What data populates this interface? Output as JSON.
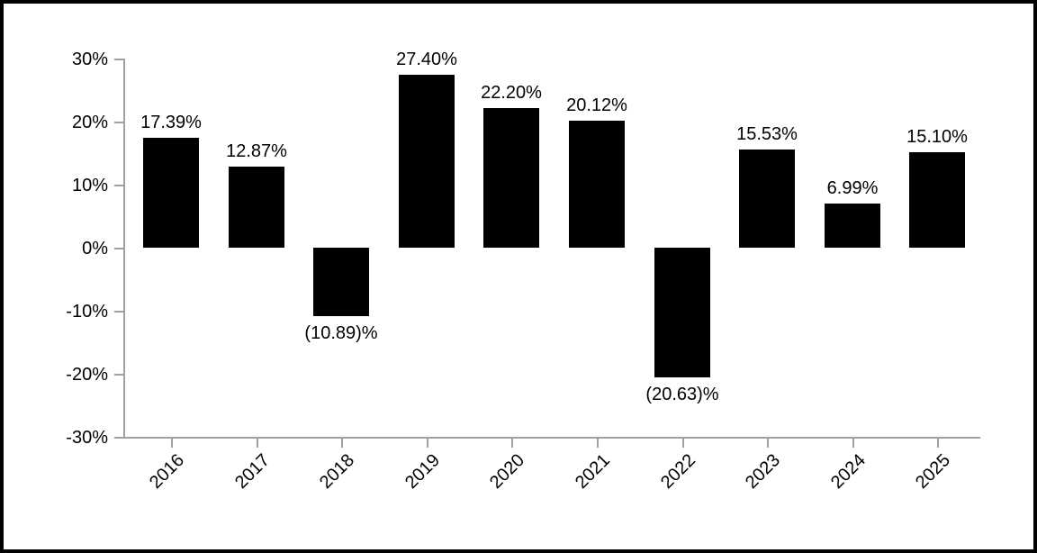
{
  "chart_data": {
    "type": "bar",
    "title": "",
    "xlabel": "",
    "ylabel": "",
    "categories": [
      "2016",
      "2017",
      "2018",
      "2019",
      "2020",
      "2021",
      "2022",
      "2023",
      "2024",
      "2025"
    ],
    "values": [
      17.39,
      12.87,
      -10.89,
      27.4,
      22.2,
      20.12,
      -20.63,
      15.53,
      6.99,
      15.1
    ],
    "value_labels": [
      "17.39%",
      "12.87%",
      "(10.89)%",
      "27.40%",
      "22.20%",
      "20.12%",
      "(20.63)%",
      "15.53%",
      "6.99%",
      "15.10%"
    ],
    "ylim": [
      -30,
      30
    ],
    "y_ticks": [
      {
        "value": 30,
        "label": "30%"
      },
      {
        "value": 20,
        "label": "20%"
      },
      {
        "value": 10,
        "label": "10%"
      },
      {
        "value": 0,
        "label": "0%"
      },
      {
        "value": -10,
        "label": "-10%"
      },
      {
        "value": -20,
        "label": "-20%"
      },
      {
        "value": -30,
        "label": "-30%"
      }
    ],
    "grid": false,
    "legend": false,
    "bar_color": "#000000",
    "axis_color": "#a0a0a0",
    "text_color": "#000000",
    "frame_color": "#000000",
    "background_color": "#ffffff"
  }
}
